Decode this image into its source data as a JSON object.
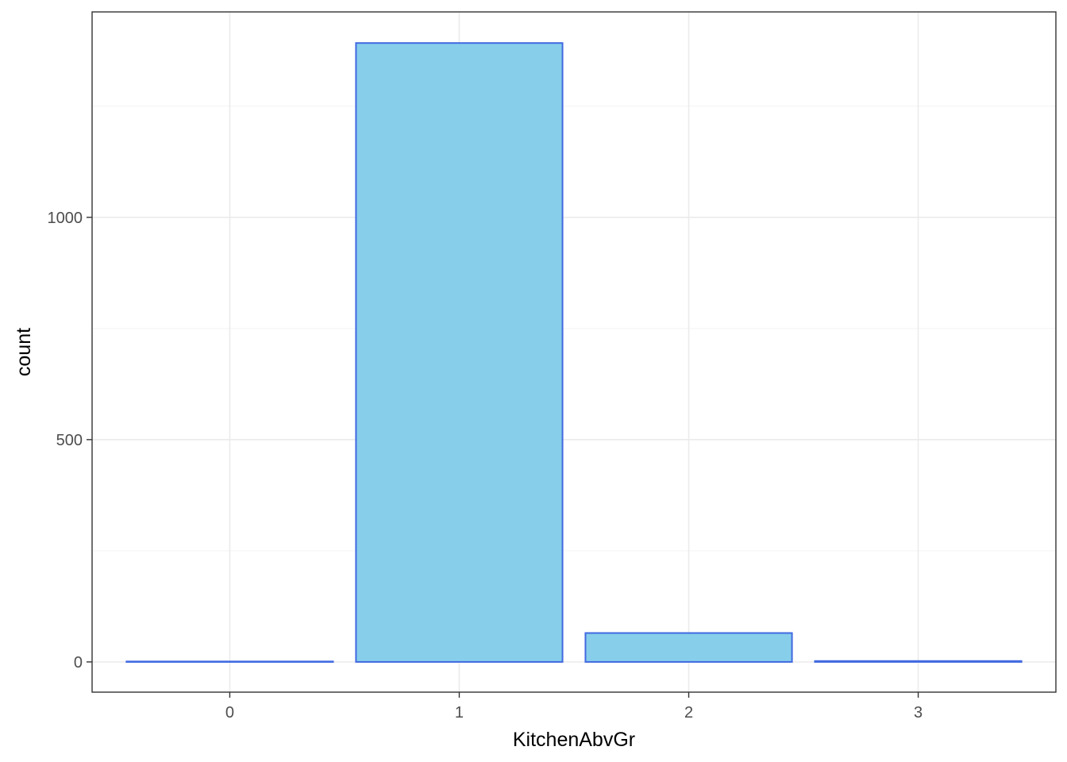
{
  "chart_data": {
    "type": "bar",
    "categories": [
      "0",
      "1",
      "2",
      "3"
    ],
    "values": [
      1,
      1392,
      65,
      2
    ],
    "xlabel": "KitchenAbvGr",
    "ylabel": "count",
    "ylim": [
      -68,
      1462
    ],
    "yticks": [
      0,
      500,
      1000
    ],
    "grid": true,
    "bar_fill": "#87CEEB",
    "bar_outline": "#4169E1"
  }
}
